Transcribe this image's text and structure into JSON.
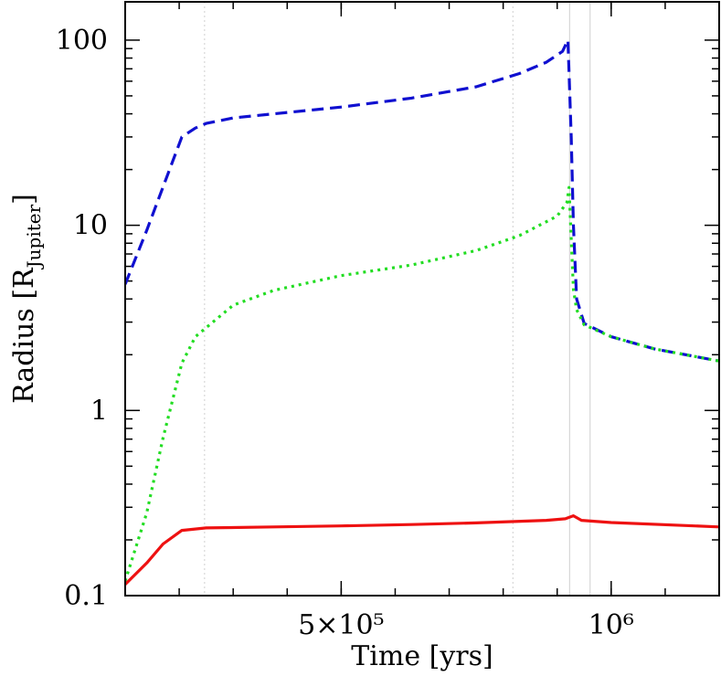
{
  "chart_data": {
    "type": "line",
    "xlabel": "Time [yrs]",
    "ylabel": [
      "Radius [R",
      "Jupiter",
      "]"
    ],
    "xlim": [
      100000,
      1200000
    ],
    "ylim": [
      0.1,
      161
    ],
    "ylog": true,
    "xticks": [
      {
        "value": 500000,
        "label": "5×10⁵"
      },
      {
        "value": 1000000,
        "label": "10⁶"
      }
    ],
    "yticks": [
      0.1,
      1,
      10,
      100
    ],
    "vlines": [
      {
        "x": 247000,
        "style": "dotted"
      },
      {
        "x": 818000,
        "style": "dotted"
      },
      {
        "x": 923000,
        "style": "solid"
      },
      {
        "x": 961000,
        "style": "solid"
      }
    ],
    "series": [
      {
        "color": "#1010d0",
        "style": "dashed",
        "x": [
          100000,
          140000,
          170000,
          205000,
          230000,
          250000,
          300000,
          375000,
          500000,
          630000,
          750000,
          830000,
          880000,
          910000,
          920000,
          926000,
          930000,
          936000,
          950000,
          1000000,
          1080000,
          1200000
        ],
        "values": [
          4.8,
          9.4,
          16.1,
          30,
          33.5,
          35.5,
          38,
          40,
          43.5,
          48.6,
          56,
          66,
          76,
          87,
          100,
          30,
          10,
          4,
          2.95,
          2.5,
          2.15,
          1.85
        ]
      },
      {
        "color": "#22dd22",
        "style": "dotted",
        "x": [
          100000,
          140000,
          170000,
          205000,
          230000,
          250000,
          300000,
          375000,
          500000,
          630000,
          750000,
          830000,
          900000,
          918000,
          922000,
          930000,
          936000,
          950000,
          1000000,
          1080000,
          1200000
        ],
        "values": [
          0.12,
          0.28,
          0.71,
          1.8,
          2.5,
          2.8,
          3.7,
          4.45,
          5.35,
          6.1,
          7.3,
          8.8,
          11.2,
          13.3,
          16,
          4.5,
          3.5,
          2.9,
          2.5,
          2.15,
          1.85
        ]
      },
      {
        "color": "#ee1111",
        "style": "solid",
        "x": [
          100000,
          140000,
          170000,
          205000,
          250000,
          375000,
          500000,
          630000,
          750000,
          880000,
          915000,
          930000,
          945000,
          1000000,
          1200000
        ],
        "values": [
          0.115,
          0.15,
          0.19,
          0.225,
          0.232,
          0.235,
          0.238,
          0.242,
          0.247,
          0.255,
          0.26,
          0.27,
          0.255,
          0.248,
          0.235
        ]
      }
    ]
  }
}
